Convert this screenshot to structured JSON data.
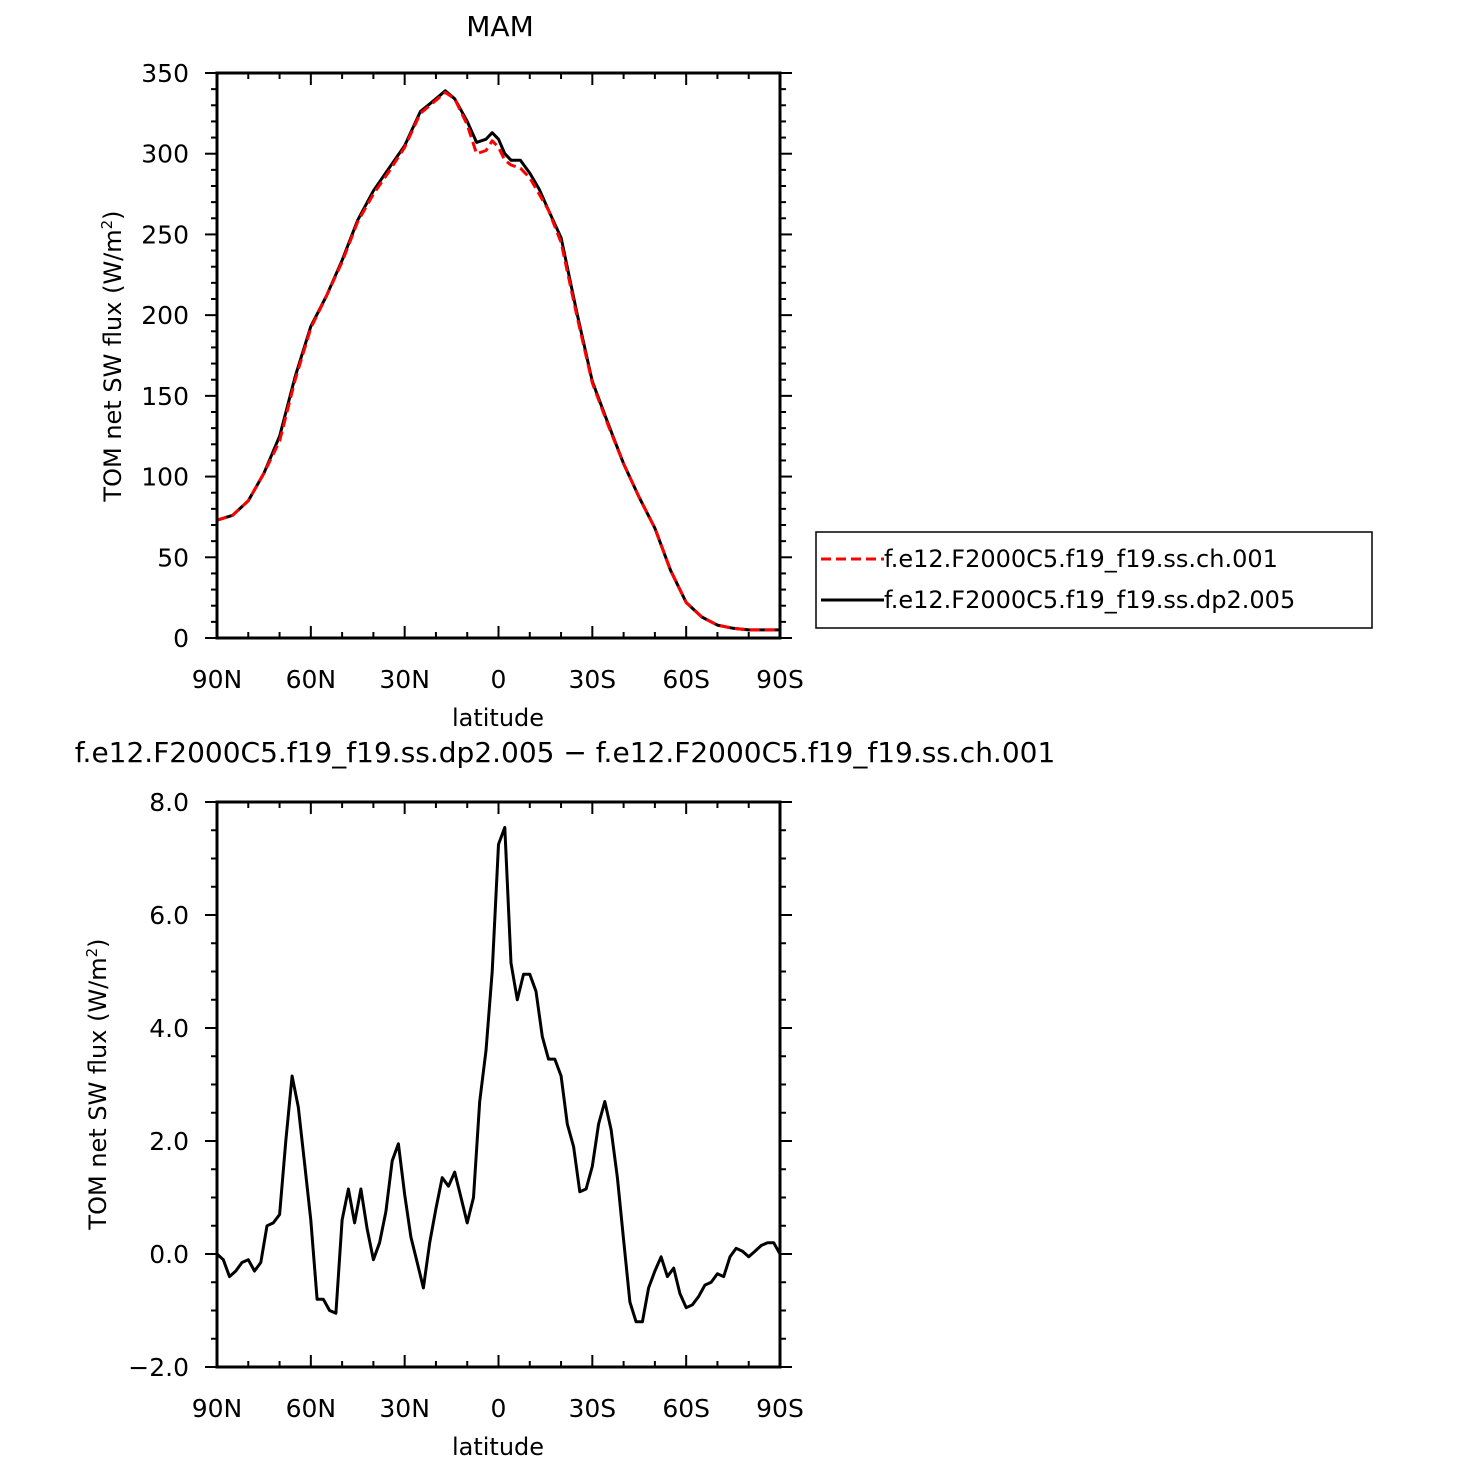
{
  "charts": [
    {
      "title": "MAM",
      "xlabel": "latitude",
      "ylabel_main": "TOM net SW flux (W/m",
      "ylabel_sup": "2",
      "ylabel_close": ")"
    },
    {
      "title": "f.e12.F2000C5.f19_f19.ss.dp2.005 − f.e12.F2000C5.f19_f19.ss.ch.001",
      "xlabel": "latitude",
      "ylabel_main": "TOM net SW flux (W/m",
      "ylabel_sup": "2",
      "ylabel_close": ")"
    }
  ],
  "legend": [
    {
      "label": "f.e12.F2000C5.f19_f19.ss.ch.001",
      "color": "#ff0000",
      "dash": "dashed"
    },
    {
      "label": "f.e12.F2000C5.f19_f19.ss.dp2.005",
      "color": "#000000",
      "dash": "solid"
    }
  ],
  "chart_data": [
    {
      "type": "line",
      "title": "MAM",
      "xlabel": "latitude",
      "ylabel": "TOM net SW flux (W/m²)",
      "xlim": [
        90,
        -90
      ],
      "ylim": [
        0,
        350
      ],
      "x_ticks": [
        90,
        60,
        30,
        0,
        -30,
        -60,
        -90
      ],
      "x_tick_labels": [
        "90N",
        "60N",
        "30N",
        "0",
        "30S",
        "60S",
        "90S"
      ],
      "y_ticks": [
        0,
        50,
        100,
        150,
        200,
        250,
        300,
        350
      ],
      "y_tick_labels": [
        "0",
        "50",
        "100",
        "150",
        "200",
        "250",
        "300",
        "350"
      ],
      "legend_position": "right",
      "x": [
        90,
        85,
        80,
        75,
        70,
        65,
        60,
        55,
        50,
        45,
        40,
        35,
        30,
        25,
        20,
        17,
        14,
        10,
        7,
        4,
        2,
        0,
        -2,
        -4,
        -7,
        -10,
        -13,
        -16,
        -20,
        -25,
        -30,
        -35,
        -40,
        -45,
        -50,
        -55,
        -60,
        -65,
        -70,
        -75,
        -80,
        -85,
        -90
      ],
      "series": [
        {
          "name": "f.e12.F2000C5.f19_f19.ss.ch.001",
          "color": "#ff0000",
          "dash": "dashed",
          "values": [
            73,
            76,
            85,
            102,
            122,
            160,
            192,
            212,
            233,
            258,
            275,
            289,
            304,
            325,
            333,
            338,
            334,
            318,
            300,
            302,
            308,
            304,
            296,
            293,
            291,
            285,
            275,
            265,
            245,
            200,
            158,
            132,
            108,
            87,
            68,
            42,
            22,
            13,
            8,
            6,
            5,
            5,
            5
          ]
        },
        {
          "name": "f.e12.F2000C5.f19_f19.ss.dp2.005",
          "color": "#000000",
          "dash": "solid",
          "values": [
            73,
            76,
            85,
            102,
            125,
            162,
            193,
            212,
            234,
            259,
            277,
            291,
            305,
            326,
            334,
            339,
            334,
            320,
            307,
            309,
            313,
            309,
            300,
            296,
            296,
            288,
            278,
            265,
            248,
            202,
            159,
            133,
            108,
            87,
            68,
            42,
            22,
            13,
            8,
            6,
            5,
            5,
            5
          ]
        }
      ]
    },
    {
      "type": "line",
      "title": "f.e12.F2000C5.f19_f19.ss.dp2.005 − f.e12.F2000C5.f19_f19.ss.ch.001",
      "xlabel": "latitude",
      "ylabel": "TOM net SW flux (W/m²)",
      "xlim": [
        90,
        -90
      ],
      "ylim": [
        -2.0,
        8.0
      ],
      "x_ticks": [
        90,
        60,
        30,
        0,
        -30,
        -60,
        -90
      ],
      "x_tick_labels": [
        "90N",
        "60N",
        "30N",
        "0",
        "30S",
        "60S",
        "90S"
      ],
      "y_ticks": [
        -2.0,
        0.0,
        2.0,
        4.0,
        6.0,
        8.0
      ],
      "y_tick_labels": [
        "−2.0",
        "0.0",
        "2.0",
        "4.0",
        "6.0",
        "8.0"
      ],
      "x": [
        90,
        88,
        86,
        84,
        82,
        80,
        78,
        76,
        74,
        72,
        70,
        68,
        66,
        64,
        62,
        60,
        58,
        56,
        54,
        52,
        50,
        48,
        46,
        44,
        42,
        40,
        38,
        36,
        34,
        32,
        30,
        28,
        26,
        24,
        22,
        20,
        18,
        16,
        14,
        12,
        10,
        8,
        6,
        4,
        2,
        0,
        -2,
        -4,
        -6,
        -8,
        -10,
        -12,
        -14,
        -16,
        -18,
        -20,
        -22,
        -24,
        -26,
        -28,
        -30,
        -32,
        -34,
        -36,
        -38,
        -40,
        -42,
        -44,
        -46,
        -48,
        -50,
        -52,
        -54,
        -56,
        -58,
        -60,
        -62,
        -64,
        -66,
        -68,
        -70,
        -72,
        -74,
        -76,
        -78,
        -80,
        -82,
        -84,
        -86,
        -88,
        -90
      ],
      "series": [
        {
          "name": "",
          "color": "#000000",
          "values": [
            0.0,
            -0.1,
            -0.4,
            -0.3,
            -0.15,
            -0.1,
            -0.3,
            -0.15,
            0.5,
            0.55,
            0.7,
            2.0,
            3.15,
            2.6,
            1.6,
            0.6,
            -0.8,
            -0.8,
            -1.0,
            -1.05,
            0.6,
            1.15,
            0.55,
            1.15,
            0.45,
            -0.1,
            0.2,
            0.75,
            1.65,
            1.95,
            1.05,
            0.3,
            -0.15,
            -0.6,
            0.2,
            0.8,
            1.35,
            1.2,
            1.45,
            1.0,
            0.55,
            1.0,
            2.7,
            3.6,
            5.0,
            7.25,
            7.55,
            5.15,
            4.5,
            4.95,
            4.95,
            4.65,
            3.85,
            3.45,
            3.45,
            3.15,
            2.3,
            1.9,
            1.1,
            1.15,
            1.55,
            2.3,
            2.7,
            2.2,
            1.35,
            0.25,
            -0.85,
            -1.2,
            -1.2,
            -0.6,
            -0.3,
            -0.05,
            -0.4,
            -0.25,
            -0.7,
            -0.95,
            -0.9,
            -0.75,
            -0.55,
            -0.5,
            -0.35,
            -0.4,
            -0.05,
            0.1,
            0.05,
            -0.05,
            0.05,
            0.15,
            0.2,
            0.2,
            0.0
          ]
        }
      ]
    }
  ]
}
